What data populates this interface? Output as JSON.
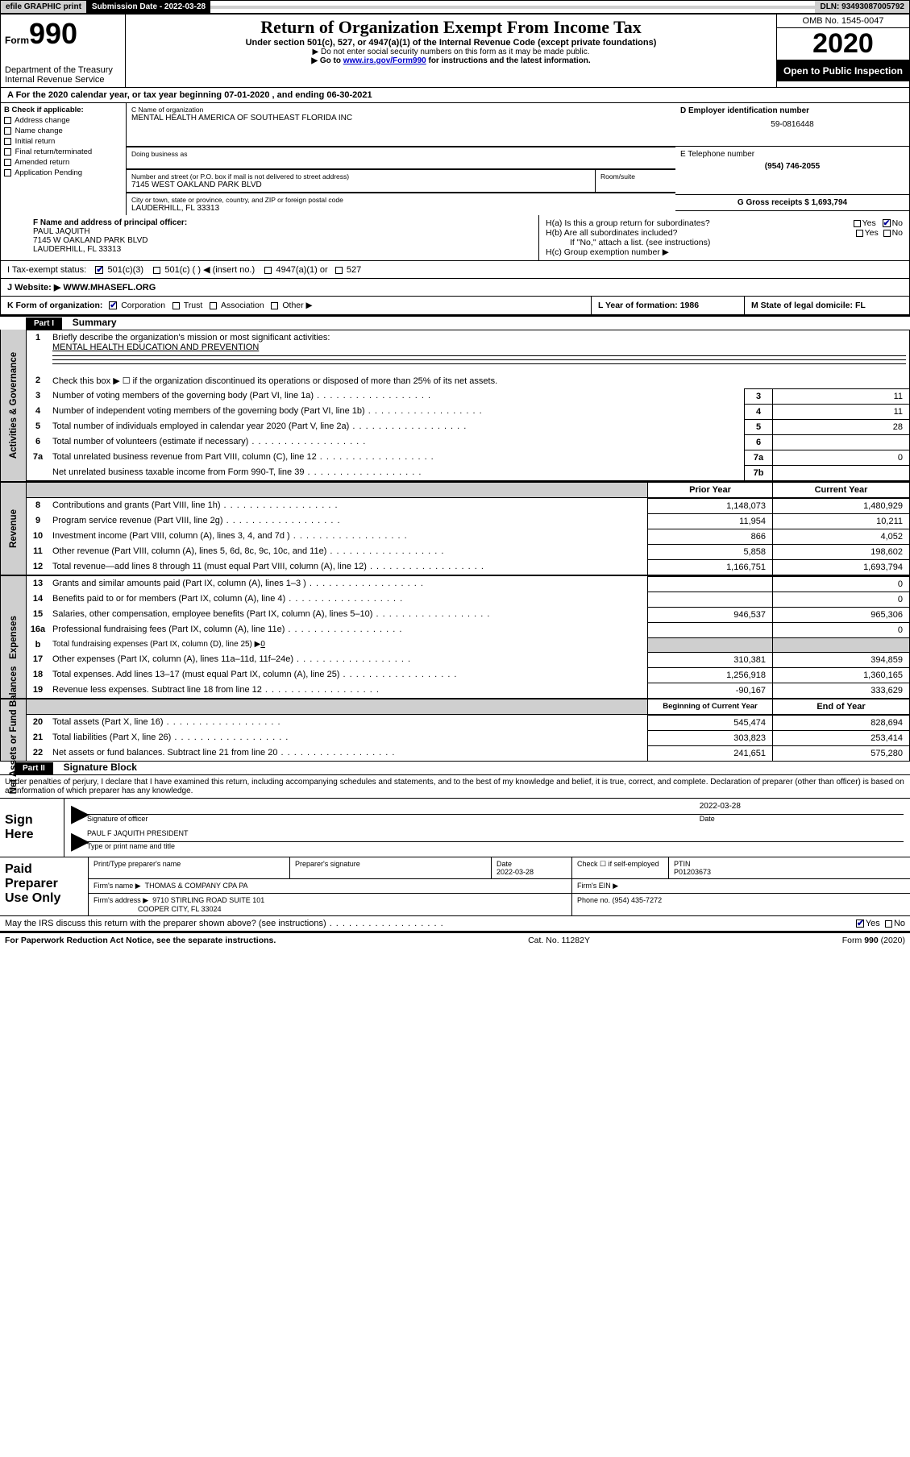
{
  "top": {
    "efile": "efile GRAPHIC print",
    "subdate_lbl": "Submission Date - 2022-03-28",
    "dln": "DLN: 93493087005792"
  },
  "header": {
    "form_small": "Form",
    "form_big": "990",
    "dept1": "Department of the Treasury",
    "dept2": "Internal Revenue Service",
    "title": "Return of Organization Exempt From Income Tax",
    "sub1": "Under section 501(c), 527, or 4947(a)(1) of the Internal Revenue Code (except private foundations)",
    "sub2": "▶ Do not enter social security numbers on this form as it may be made public.",
    "sub3a": "▶ Go to ",
    "sub3_link": "www.irs.gov/Form990",
    "sub3b": " for instructions and the latest information.",
    "omb": "OMB No. 1545-0047",
    "year": "2020",
    "open": "Open to Public Inspection"
  },
  "lineA": "A  For the 2020 calendar year, or tax year beginning 07-01-2020    , and ending 06-30-2021",
  "sectionB": {
    "hdr": "B Check if applicable:",
    "items": [
      "Address change",
      "Name change",
      "Initial return",
      "Final return/terminated",
      "Amended return",
      "Application Pending"
    ]
  },
  "sectionC": {
    "c_lbl": "C Name of organization",
    "c_val": "MENTAL HEALTH AMERICA OF SOUTHEAST FLORIDA INC",
    "dba": "Doing business as",
    "street_lbl": "Number and street (or P.O. box if mail is not delivered to street address)",
    "room_lbl": "Room/suite",
    "street": "7145 WEST OAKLAND PARK BLVD",
    "city_lbl": "City or town, state or province, country, and ZIP or foreign postal code",
    "city": "LAUDERHILL, FL  33313"
  },
  "sectionD": {
    "lbl": "D Employer identification number",
    "val": "59-0816448"
  },
  "sectionE": {
    "lbl": "E Telephone number",
    "val": "(954) 746-2055"
  },
  "sectionG": {
    "lbl": "G Gross receipts $ 1,693,794"
  },
  "sectionF": {
    "lbl": "F Name and address of principal officer:",
    "name": "PAUL JAQUITH",
    "addr1": "7145 W OAKLAND PARK BLVD",
    "addr2": "LAUDERHILL, FL  33313"
  },
  "sectionH": {
    "ha": "H(a)  Is this a group return for subordinates?",
    "hb": "H(b)  Are all subordinates included?",
    "hbNote": "If \"No,\" attach a list. (see instructions)",
    "hc": "H(c)  Group exemption number ▶",
    "yes": "Yes",
    "no": "No"
  },
  "sectionI": {
    "lbl": "I    Tax-exempt status:",
    "opts": [
      "501(c)(3)",
      "501(c) (  ) ◀ (insert no.)",
      "4947(a)(1) or",
      "527"
    ]
  },
  "sectionJ": {
    "lbl": "J    Website: ▶",
    "val": "  WWW.MHASEFL.ORG"
  },
  "sectionK": "K Form of organization:",
  "kOpts": [
    "Corporation",
    "Trust",
    "Association",
    "Other ▶"
  ],
  "sectionL": "L Year of formation: 1986",
  "sectionM": "M State of legal domicile: FL",
  "part1": {
    "hdr": "Part I",
    "title": "Summary",
    "mission_lbl": "Briefly describe the organization's mission or most significant activities:",
    "mission": "MENTAL HEALTH EDUCATION AND PREVENTION",
    "line2": "Check this box  ▶ ☐  if the organization discontinued its operations or disposed of more than 25% of its net assets.",
    "side_ag": "Activities & Governance",
    "side_rev": "Revenue",
    "side_exp": "Expenses",
    "side_net": "Net Assets or Fund Balances",
    "rows_gov": [
      {
        "n": "3",
        "t": "Number of voting members of the governing body (Part VI, line 1a)",
        "b": "3",
        "v": "11"
      },
      {
        "n": "4",
        "t": "Number of independent voting members of the governing body (Part VI, line 1b)",
        "b": "4",
        "v": "11"
      },
      {
        "n": "5",
        "t": "Total number of individuals employed in calendar year 2020 (Part V, line 2a)",
        "b": "5",
        "v": "28"
      },
      {
        "n": "6",
        "t": "Total number of volunteers (estimate if necessary)",
        "b": "6",
        "v": ""
      },
      {
        "n": "7a",
        "t": "Total unrelated business revenue from Part VIII, column (C), line 12",
        "b": "7a",
        "v": "0"
      },
      {
        "n": "",
        "t": "Net unrelated business taxable income from Form 990-T, line 39",
        "b": "7b",
        "v": ""
      }
    ],
    "hdr_prior": "Prior Year",
    "hdr_curr": "Current Year",
    "rows_rev": [
      {
        "n": "8",
        "t": "Contributions and grants (Part VIII, line 1h)",
        "p": "1,148,073",
        "c": "1,480,929"
      },
      {
        "n": "9",
        "t": "Program service revenue (Part VIII, line 2g)",
        "p": "11,954",
        "c": "10,211"
      },
      {
        "n": "10",
        "t": "Investment income (Part VIII, column (A), lines 3, 4, and 7d )",
        "p": "866",
        "c": "4,052"
      },
      {
        "n": "11",
        "t": "Other revenue (Part VIII, column (A), lines 5, 6d, 8c, 9c, 10c, and 11e)",
        "p": "5,858",
        "c": "198,602"
      },
      {
        "n": "12",
        "t": "Total revenue—add lines 8 through 11 (must equal Part VIII, column (A), line 12)",
        "p": "1,166,751",
        "c": "1,693,794"
      }
    ],
    "rows_exp": [
      {
        "n": "13",
        "t": "Grants and similar amounts paid (Part IX, column (A), lines 1–3 )",
        "p": "",
        "c": "0"
      },
      {
        "n": "14",
        "t": "Benefits paid to or for members (Part IX, column (A), line 4)",
        "p": "",
        "c": "0"
      },
      {
        "n": "15",
        "t": "Salaries, other compensation, employee benefits (Part IX, column (A), lines 5–10)",
        "p": "946,537",
        "c": "965,306"
      },
      {
        "n": "16a",
        "t": "Professional fundraising fees (Part IX, column (A), line 11e)",
        "p": "",
        "c": "0"
      }
    ],
    "row16b": {
      "n": "b",
      "t": "Total fundraising expenses (Part IX, column (D), line 25) ▶",
      "v": "0"
    },
    "rows_exp2": [
      {
        "n": "17",
        "t": "Other expenses (Part IX, column (A), lines 11a–11d, 11f–24e)",
        "p": "310,381",
        "c": "394,859"
      },
      {
        "n": "18",
        "t": "Total expenses. Add lines 13–17 (must equal Part IX, column (A), line 25)",
        "p": "1,256,918",
        "c": "1,360,165"
      },
      {
        "n": "19",
        "t": "Revenue less expenses. Subtract line 18 from line 12",
        "p": "-90,167",
        "c": "333,629"
      }
    ],
    "hdr_beg": "Beginning of Current Year",
    "hdr_end": "End of Year",
    "rows_net": [
      {
        "n": "20",
        "t": "Total assets (Part X, line 16)",
        "p": "545,474",
        "c": "828,694"
      },
      {
        "n": "21",
        "t": "Total liabilities (Part X, line 26)",
        "p": "303,823",
        "c": "253,414"
      },
      {
        "n": "22",
        "t": "Net assets or fund balances. Subtract line 21 from line 20",
        "p": "241,651",
        "c": "575,280"
      }
    ]
  },
  "part2": {
    "hdr": "Part II",
    "title": "Signature Block",
    "declare": "Under penalties of perjury, I declare that I have examined this return, including accompanying schedules and statements, and to the best of my knowledge and belief, it is true, correct, and complete. Declaration of preparer (other than officer) is based on all information of which preparer has any knowledge."
  },
  "sign": {
    "lbl": "Sign Here",
    "sig_lbl": "Signature of officer",
    "date_lbl": "Date",
    "date": "2022-03-28",
    "name": "PAUL F JAQUITH  PRESIDENT",
    "name_lbl": "Type or print name and title"
  },
  "prep": {
    "lbl": "Paid Preparer Use Only",
    "h1": "Print/Type preparer's name",
    "h2": "Preparer's signature",
    "h3": "Date",
    "h3v": "2022-03-28",
    "h4": "Check ☐ if self-employed",
    "h5": "PTIN",
    "h5v": "P01203673",
    "firm_lbl": "Firm's name    ▶",
    "firm": "THOMAS & COMPANY CPA PA",
    "ein_lbl": "Firm's EIN ▶",
    "addr_lbl": "Firm's address ▶",
    "addr1": "9710 STIRLING ROAD SUITE 101",
    "addr2": "COOPER CITY, FL  33024",
    "phone_lbl": "Phone no. (954) 435-7272",
    "discuss": "May the IRS discuss this return with the preparer shown above? (see instructions)",
    "discuss_yes": "Yes",
    "discuss_no": "No"
  },
  "footer": {
    "left": "For Paperwork Reduction Act Notice, see the separate instructions.",
    "mid": "Cat. No. 11282Y",
    "right": "Form 990 (2020)"
  }
}
